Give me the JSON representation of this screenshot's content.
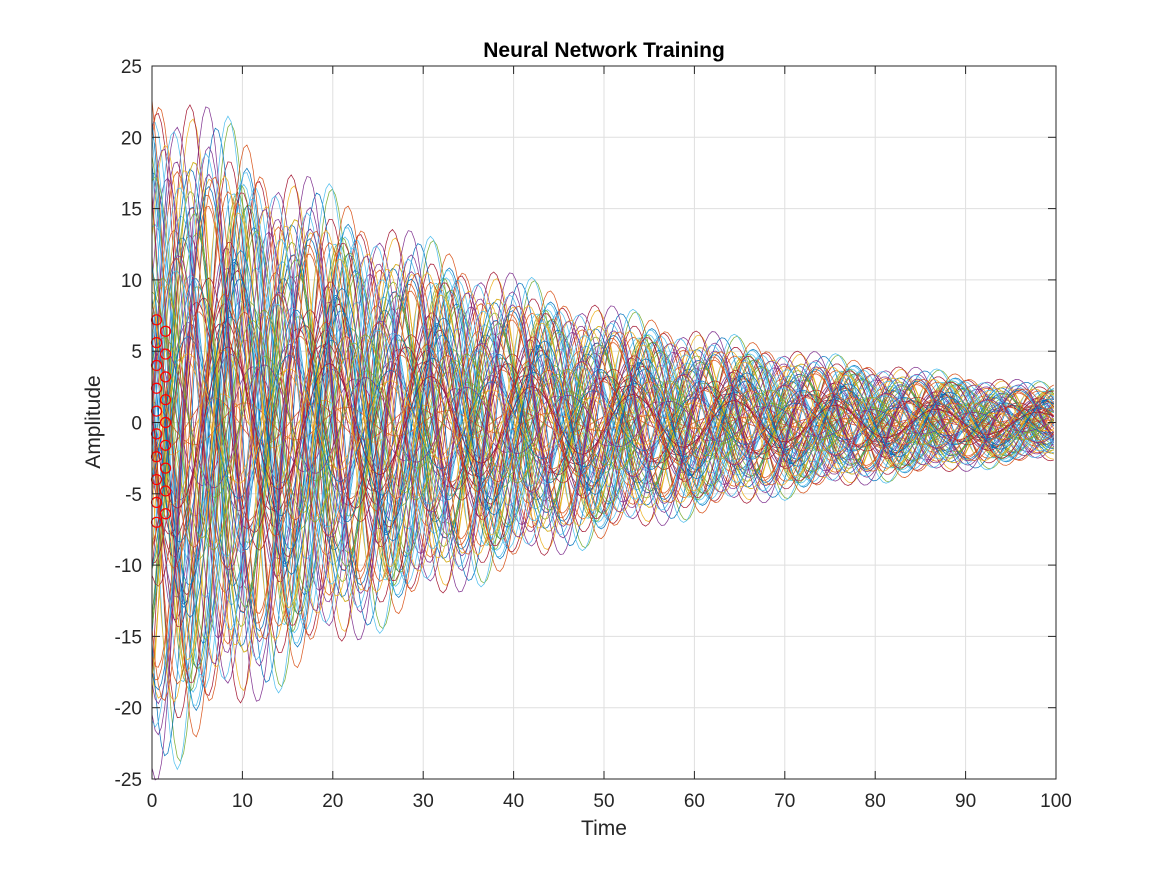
{
  "chart_data": {
    "type": "line",
    "title": "Neural Network Training",
    "xlabel": "Time",
    "ylabel": "Amplitude",
    "xlim": [
      0,
      100
    ],
    "ylim": [
      -25,
      25
    ],
    "x_ticks": [
      "0",
      "10",
      "20",
      "30",
      "40",
      "50",
      "60",
      "70",
      "80",
      "90",
      "100"
    ],
    "y_ticks": [
      "-25",
      "-20",
      "-15",
      "-10",
      "-5",
      "0",
      "5",
      "10",
      "15",
      "20",
      "25"
    ],
    "grid": true,
    "legend": "none",
    "series_count": 100,
    "series_model": "damped sinusoids y = A*exp(-t/45)*sin(2*pi*t/11.2 + phase), oscillation period ~11.2, envelope from ~±24 at t≈5 to ~±2.5 at t=100",
    "envelope_peaks": [
      {
        "x": 4.5,
        "y": 23.7
      },
      {
        "x": 16.5,
        "y": 16.6
      },
      {
        "x": 28,
        "y": 12.8
      },
      {
        "x": 39,
        "y": 9.4
      },
      {
        "x": 50,
        "y": 7.6
      },
      {
        "x": 61,
        "y": 5.4
      },
      {
        "x": 72,
        "y": 4.5
      },
      {
        "x": 83,
        "y": 3.2
      },
      {
        "x": 94,
        "y": 2.5
      }
    ],
    "envelope_troughs": [
      {
        "x": 5.5,
        "y": -22.0
      },
      {
        "x": 16,
        "y": -18.0
      },
      {
        "x": 27.5,
        "y": -12.6
      },
      {
        "x": 38,
        "y": -10.2
      },
      {
        "x": 49,
        "y": -7.0
      },
      {
        "x": 60,
        "y": -5.9
      },
      {
        "x": 71,
        "y": -4.1
      },
      {
        "x": 82,
        "y": -3.2
      },
      {
        "x": 93,
        "y": -2.3
      }
    ],
    "markers": {
      "shape": "circle",
      "color": "#ff0000",
      "x_range": [
        0.5,
        1.5
      ],
      "y_values": [
        7.2,
        6.4,
        5.6,
        4.8,
        4.0,
        3.2,
        2.4,
        1.6,
        0.8,
        0.0,
        -0.8,
        -1.6,
        -2.4,
        -3.2,
        -4.0,
        -4.8,
        -5.6,
        -6.4,
        -7.0
      ]
    },
    "colors": [
      "#0072bd",
      "#d95319",
      "#edb120",
      "#7e2f8e",
      "#77ac30",
      "#4dbeee",
      "#a2142f"
    ]
  }
}
